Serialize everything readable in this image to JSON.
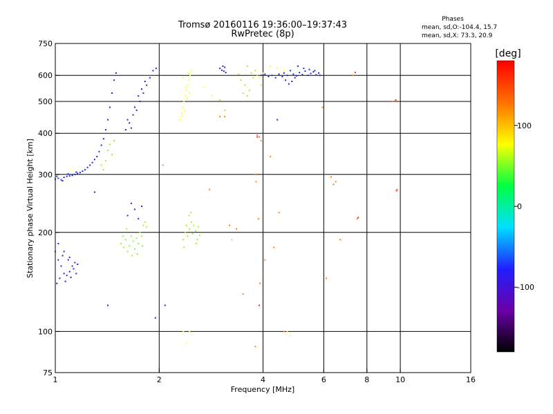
{
  "chart_data": {
    "type": "scatter",
    "title": "Tromsø 20160116 19:36:00–19:37:43",
    "subtitle": "RwPretec (8p)",
    "stats": {
      "heading": "Phases",
      "line1": "mean, sd,O:-104.4, 15.7",
      "line2": "mean, sd,X:  73.3, 20.9"
    },
    "xlabel": "Frequency [MHz]",
    "ylabel": "Stationary phase Virtual Height [km]",
    "xscale": "log",
    "yscale": "log",
    "xlim": [
      1,
      16
    ],
    "ylim": [
      75,
      750
    ],
    "xticks": [
      1,
      2,
      4,
      6,
      8,
      10,
      16
    ],
    "xtick_labels": [
      "1",
      "2",
      "4",
      "6",
      "8",
      "10",
      "16"
    ],
    "yticks": [
      75,
      100,
      200,
      300,
      400,
      500,
      600,
      750
    ],
    "ytick_labels": [
      "75",
      "100",
      "200",
      "300",
      "400",
      "500",
      "600",
      "750"
    ],
    "x_gridlines": [
      2,
      4,
      6,
      8,
      10
    ],
    "y_gridlines": [
      100,
      200,
      300,
      400,
      500,
      600
    ],
    "grid": true,
    "colorbar": {
      "label": "[deg]",
      "ticks": [
        100,
        0,
        -100
      ],
      "tick_labels": [
        "100",
        "0",
        "-100"
      ],
      "range": [
        -180,
        180
      ],
      "stops": [
        "#000000",
        "#6a00a8",
        "#2020ff",
        "#00e0ff",
        "#00ff40",
        "#ffff00",
        "#ff7000",
        "#ff0000"
      ]
    },
    "series": [
      {
        "color": "#1f1fdd",
        "points": [
          [
            1.0,
            290
          ],
          [
            1.02,
            292
          ],
          [
            1.04,
            289
          ],
          [
            1.06,
            294
          ],
          [
            1.08,
            296
          ],
          [
            1.1,
            297
          ],
          [
            1.12,
            298
          ],
          [
            1.14,
            300
          ],
          [
            1.16,
            302
          ],
          [
            1.18,
            304
          ],
          [
            1.2,
            307
          ],
          [
            1.22,
            310
          ],
          [
            1.24,
            315
          ],
          [
            1.26,
            320
          ],
          [
            1.28,
            326
          ],
          [
            1.3,
            333
          ],
          [
            1.32,
            340
          ],
          [
            1.34,
            352
          ],
          [
            1.36,
            368
          ],
          [
            1.38,
            385
          ],
          [
            1.4,
            410
          ],
          [
            1.42,
            440
          ],
          [
            1.44,
            480
          ],
          [
            1.46,
            530
          ],
          [
            1.48,
            580
          ],
          [
            1.5,
            610
          ],
          [
            1.01,
            296
          ],
          [
            1.05,
            287
          ],
          [
            1.09,
            301
          ],
          [
            1.15,
            305
          ],
          [
            1.0,
            175
          ],
          [
            1.02,
            165
          ],
          [
            1.04,
            158
          ],
          [
            1.06,
            150
          ],
          [
            1.08,
            148
          ],
          [
            1.1,
            152
          ],
          [
            1.12,
            158
          ],
          [
            1.14,
            162
          ],
          [
            1.16,
            160
          ],
          [
            1.03,
            145
          ],
          [
            1.01,
            140
          ],
          [
            1.05,
            170
          ],
          [
            1.07,
            142
          ],
          [
            1.09,
            165
          ],
          [
            1.11,
            146
          ],
          [
            1.13,
            155
          ],
          [
            1.15,
            150
          ],
          [
            1.02,
            185
          ],
          [
            1.06,
            175
          ],
          [
            1.1,
            168
          ],
          [
            1.6,
            410
          ],
          [
            1.64,
            430
          ],
          [
            1.68,
            455
          ],
          [
            1.72,
            470
          ],
          [
            1.76,
            500
          ],
          [
            1.8,
            530
          ],
          [
            1.84,
            560
          ],
          [
            1.88,
            590
          ],
          [
            1.92,
            620
          ],
          [
            1.96,
            630
          ],
          [
            1.62,
            440
          ],
          [
            1.66,
            415
          ],
          [
            1.7,
            480
          ],
          [
            1.74,
            520
          ],
          [
            1.78,
            545
          ],
          [
            1.82,
            575
          ],
          [
            3.0,
            630
          ],
          [
            3.04,
            622
          ],
          [
            3.08,
            618
          ],
          [
            3.12,
            612
          ],
          [
            3.06,
            640
          ],
          [
            3.1,
            635
          ],
          [
            4.6,
            610
          ],
          [
            4.7,
            600
          ],
          [
            4.8,
            620
          ],
          [
            4.9,
            605
          ],
          [
            5.0,
            598
          ],
          [
            5.1,
            612
          ],
          [
            5.2,
            603
          ],
          [
            5.3,
            618
          ],
          [
            5.4,
            600
          ],
          [
            5.5,
            608
          ],
          [
            5.6,
            615
          ],
          [
            5.7,
            602
          ],
          [
            5.8,
            610
          ],
          [
            4.65,
            580
          ],
          [
            4.75,
            565
          ],
          [
            4.85,
            575
          ],
          [
            4.95,
            590
          ],
          [
            5.05,
            640
          ],
          [
            5.25,
            630
          ],
          [
            5.45,
            625
          ],
          [
            5.65,
            620
          ],
          [
            5.85,
            600
          ],
          [
            4.55,
            595
          ],
          [
            4.45,
            605
          ],
          [
            4.35,
            590
          ],
          [
            4.25,
            600
          ],
          [
            4.15,
            595
          ],
          [
            4.05,
            605
          ],
          [
            3.95,
            600
          ],
          [
            4.4,
            440
          ],
          [
            1.62,
            225
          ],
          [
            1.66,
            245
          ],
          [
            1.7,
            235
          ],
          [
            1.74,
            220
          ],
          [
            1.78,
            240
          ],
          [
            1.3,
            265
          ],
          [
            1.95,
            110
          ],
          [
            2.08,
            120
          ],
          [
            1.42,
            120
          ]
        ]
      },
      {
        "color": "#9ff02a",
        "points": [
          [
            1.55,
            185
          ],
          [
            1.58,
            180
          ],
          [
            1.6,
            190
          ],
          [
            1.62,
            175
          ],
          [
            1.64,
            182
          ],
          [
            1.66,
            195
          ],
          [
            1.68,
            188
          ],
          [
            1.7,
            178
          ],
          [
            1.72,
            192
          ],
          [
            1.74,
            185
          ],
          [
            1.76,
            200
          ],
          [
            1.78,
            195
          ],
          [
            1.8,
            210
          ],
          [
            1.82,
            215
          ],
          [
            1.84,
            208
          ],
          [
            1.61,
            205
          ],
          [
            1.67,
            170
          ],
          [
            1.73,
            172
          ],
          [
            1.57,
            195
          ],
          [
            1.79,
            182
          ],
          [
            2.35,
            190
          ],
          [
            2.38,
            200
          ],
          [
            2.4,
            210
          ],
          [
            2.42,
            195
          ],
          [
            2.45,
            205
          ],
          [
            2.48,
            215
          ],
          [
            2.5,
            198
          ],
          [
            2.52,
            210
          ],
          [
            2.55,
            202
          ],
          [
            2.58,
            190
          ],
          [
            2.6,
            208
          ],
          [
            2.62,
            196
          ],
          [
            2.44,
            225
          ],
          [
            2.36,
            180
          ],
          [
            2.56,
            185
          ],
          [
            2.47,
            230
          ],
          [
            1.42,
            355
          ],
          [
            1.44,
            370
          ],
          [
            1.46,
            345
          ],
          [
            1.48,
            380
          ],
          [
            1.4,
            330
          ],
          [
            1.38,
            310
          ],
          [
            1.36,
            320
          ]
        ]
      },
      {
        "color": "#ffff22",
        "points": [
          [
            2.3,
            440
          ],
          [
            2.32,
            460
          ],
          [
            2.34,
            480
          ],
          [
            2.36,
            500
          ],
          [
            2.38,
            520
          ],
          [
            2.4,
            540
          ],
          [
            2.42,
            560
          ],
          [
            2.44,
            580
          ],
          [
            2.46,
            600
          ],
          [
            2.48,
            620
          ],
          [
            2.33,
            450
          ],
          [
            2.37,
            470
          ],
          [
            2.41,
            510
          ],
          [
            2.45,
            530
          ],
          [
            2.35,
            590
          ],
          [
            2.43,
            610
          ],
          [
            2.39,
            550
          ],
          [
            4.2,
            640
          ],
          [
            4.4,
            630
          ],
          [
            4.6,
            620
          ],
          [
            4.0,
            610
          ],
          [
            3.9,
            590
          ],
          [
            2.35,
            100
          ],
          [
            2.45,
            100
          ],
          [
            2.4,
            92
          ],
          [
            4.7,
            100
          ],
          [
            4.8,
            97
          ],
          [
            2.7,
            550
          ],
          [
            2.85,
            520
          ]
        ]
      },
      {
        "color": "#a8e838",
        "points": [
          [
            3.25,
            190
          ],
          [
            3.4,
            605
          ],
          [
            3.45,
            580
          ],
          [
            3.5,
            530
          ],
          [
            3.55,
            560
          ],
          [
            3.6,
            520
          ],
          [
            3.65,
            540
          ],
          [
            3.7,
            610
          ],
          [
            3.75,
            590
          ],
          [
            3.8,
            620
          ],
          [
            3.85,
            600
          ],
          [
            3.95,
            560
          ],
          [
            3.6,
            640
          ],
          [
            3.0,
            505
          ],
          [
            3.1,
            470
          ]
        ]
      },
      {
        "color": "#ff7f1a",
        "points": [
          [
            2.05,
            320
          ],
          [
            2.8,
            270
          ],
          [
            3.35,
            205
          ],
          [
            3.8,
            300
          ],
          [
            3.85,
            395
          ],
          [
            3.9,
            390
          ],
          [
            3.95,
            380
          ],
          [
            3.82,
            285
          ],
          [
            3.88,
            220
          ],
          [
            3.92,
            140
          ],
          [
            4.3,
            180
          ],
          [
            4.45,
            230
          ],
          [
            4.6,
            100
          ],
          [
            6.3,
            295
          ],
          [
            6.5,
            285
          ],
          [
            6.7,
            190
          ],
          [
            6.1,
            145
          ],
          [
            7.5,
            220
          ],
          [
            9.8,
            270
          ],
          [
            3.8,
            90
          ],
          [
            3.1,
            450
          ],
          [
            5.95,
            480
          ],
          [
            3.5,
            130
          ],
          [
            4.05,
            165
          ],
          [
            3.2,
            210
          ],
          [
            6.4,
            280
          ],
          [
            9.5,
            500
          ],
          [
            7.3,
            600
          ],
          [
            3.0,
            450
          ],
          [
            4.2,
            340
          ]
        ]
      },
      {
        "color": "#ff2020",
        "points": [
          [
            3.85,
            390
          ],
          [
            7.55,
            222
          ],
          [
            9.75,
            268
          ],
          [
            9.7,
            505
          ],
          [
            3.9,
            120
          ],
          [
            7.4,
            612
          ]
        ]
      }
    ]
  }
}
